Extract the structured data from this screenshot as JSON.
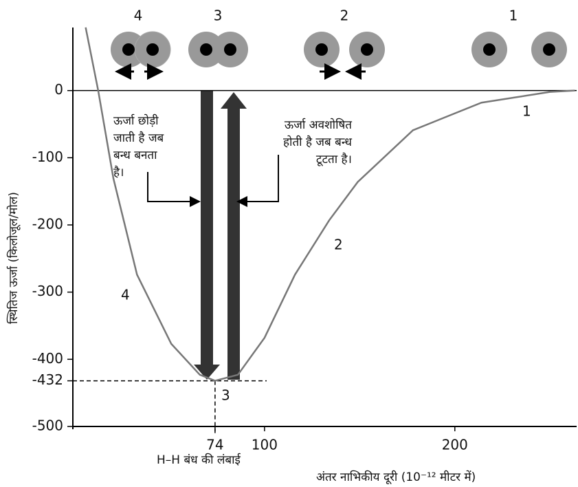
{
  "chart_data": {
    "type": "line",
    "x": [
      6,
      12.6,
      20.6,
      33,
      51,
      66,
      74,
      86,
      100,
      116,
      134,
      149,
      178,
      214,
      250,
      263
    ],
    "series": [
      {
        "color": "#777777",
        "values": [
          94,
          0,
          -131,
          -274,
          -377,
          -423,
          -432,
          -423,
          -368,
          -274,
          -193,
          -136,
          -59,
          -18,
          -2,
          0
        ]
      }
    ],
    "xlim": [
      0,
      264
    ],
    "ylim": [
      -500,
      100
    ],
    "xticks": [
      74,
      100,
      200
    ],
    "yticks": [
      0,
      -100,
      -200,
      -300,
      -400,
      -432,
      -500
    ],
    "y_label": "स्थितिज ऊर्जा (किलोजूल/मोल)",
    "x_label": "अंतर नाभिकीय दूरी (10⁻¹² मीटर में)",
    "bond_length_label": "H–H बंध की लंबाई",
    "stage_labels": [
      "4",
      "3",
      "2",
      "1"
    ],
    "curve_labels": [
      "1",
      "2",
      "3",
      "4"
    ],
    "release_text": [
      "ऊर्जा छोड़ी",
      "जाती है जब",
      "बन्ध बनता",
      "है।"
    ],
    "absorb_text": [
      "ऊर्जा अवशोषित",
      "होती है जब बन्ध",
      "टूटता है।"
    ]
  }
}
